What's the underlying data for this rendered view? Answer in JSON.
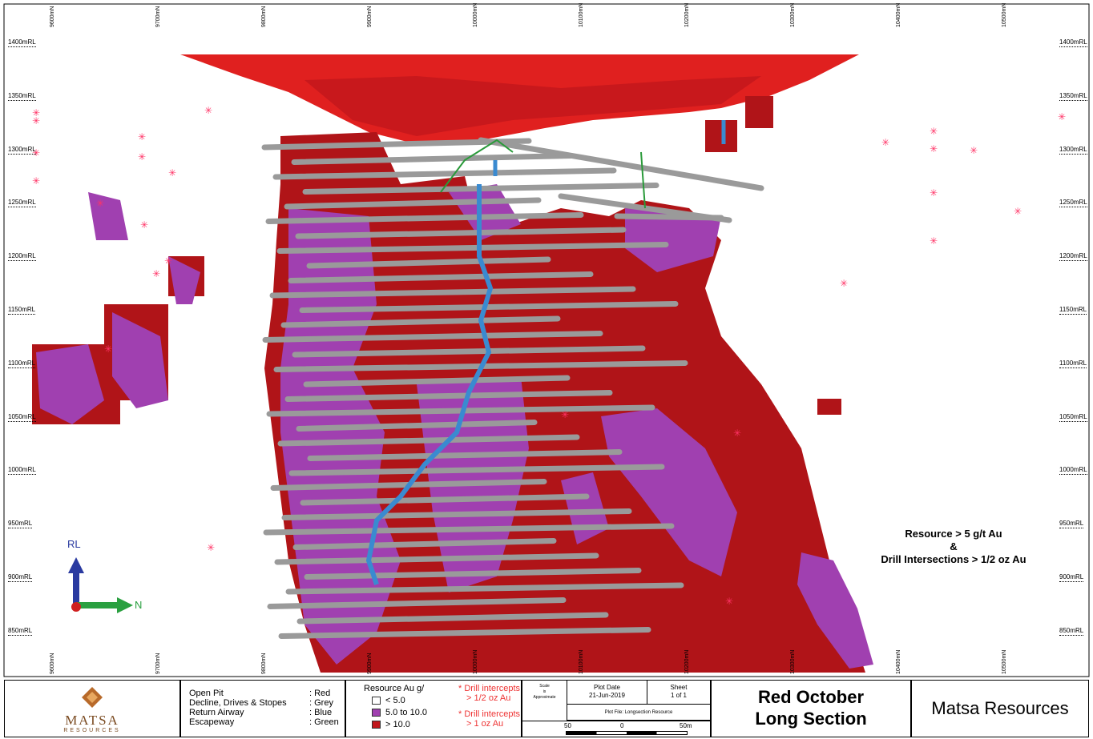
{
  "rl_labels": [
    "1400mRL",
    "1350mRL",
    "1300mRL",
    "1250mRL",
    "1200mRL",
    "1150mRL",
    "1100mRL",
    "1050mRL",
    "1000mRL",
    "950mRL",
    "900mRL",
    "850mRL"
  ],
  "northing_labels": [
    "9600mN",
    "9700mN",
    "9800mN",
    "9900mN",
    "10000mN",
    "10100mN",
    "10200mN",
    "10300mN",
    "10400mN",
    "10500mN"
  ],
  "axis": {
    "up": "RL",
    "right": "N"
  },
  "caption": {
    "line1": "Resource > 5 g/t Au",
    "line2": "&",
    "line3": "Drill Intersections > 1/2 oz Au"
  },
  "legend_workings": [
    {
      "label": "Open Pit",
      "value": ": Red"
    },
    {
      "label": "Decline, Drives & Stopes",
      "value": ": Grey"
    },
    {
      "label": "Return Airway",
      "value": ": Blue"
    },
    {
      "label": "Escapeway",
      "value": ": Green"
    }
  ],
  "legend_resource": {
    "title": "Resource Au g/",
    "items": [
      {
        "label": "< 5.0",
        "color": "#ffffff"
      },
      {
        "label": "5.0 to 10.0",
        "color": "#a040b0"
      },
      {
        "label": "> 10.0",
        "color": "#c0161b"
      }
    ]
  },
  "legend_intercepts": [
    {
      "l1": "Drill intercepts",
      "l2": "> 1/2 oz Au"
    },
    {
      "l1": "Drill intercepts",
      "l2": "> 1 oz Au"
    }
  ],
  "scale": {
    "label1": "Scale",
    "label2": "is",
    "label3": "Approximate",
    "ticks": [
      "50",
      "0",
      "50m"
    ]
  },
  "plot": {
    "date_label": "Plot Date",
    "date": "21-Jun-2019",
    "sheet_label": "Sheet",
    "sheet": "1 of 1",
    "file": "Plot File: Longsection Resource"
  },
  "title": {
    "line1": "Red October",
    "line2": "Long Section"
  },
  "company": "Matsa Resources",
  "logo": {
    "name": "MATSA",
    "sub": "RESOURCES"
  },
  "colors": {
    "open_pit": "#e0201f",
    "high_grade": "#b01418",
    "mid_grade": "#a040b0",
    "drive": "#9a9a9a",
    "airway": "#3a8ad0",
    "escape": "#2a9a3a",
    "intercept": "#ff3366"
  }
}
